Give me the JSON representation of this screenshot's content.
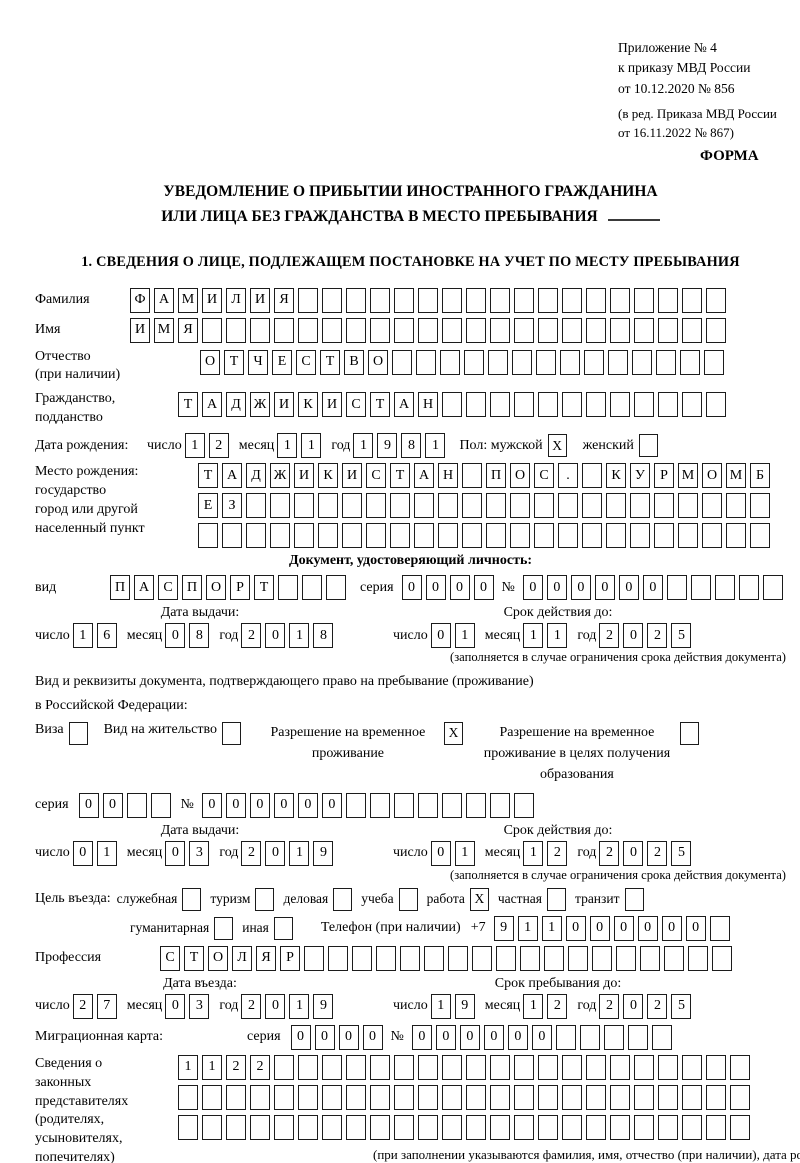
{
  "marks": {
    "x": "X"
  },
  "header": {
    "appendix_lines": [
      "Приложение № 4",
      "к приказу МВД России",
      "от 10.12.2020 № 856"
    ],
    "edition_lines": [
      "(в ред. Приказа МВД России",
      "от 16.11.2022 № 867)"
    ],
    "forma": "ФОРМА"
  },
  "title": {
    "line1": "УВЕДОМЛЕНИЕ О ПРИБЫТИИ ИНОСТРАННОГО ГРАЖДАНИНА",
    "line2": "ИЛИ ЛИЦА БЕЗ ГРАЖДАНСТВА В МЕСТО ПРЕБЫВАНИЯ"
  },
  "section1_title": "1. СВЕДЕНИЯ О ЛИЦЕ, ПОДЛЕЖАЩЕМ ПОСТАНОВКЕ НА УЧЕТ ПО МЕСТУ ПРЕБЫВАНИЯ",
  "labels": {
    "surname": "Фамилия",
    "name": "Имя",
    "patronymic_l1": "Отчество",
    "patronymic_l2": "(при наличии)",
    "citizenship_l1": "Гражданство,",
    "citizenship_l2": "подданство",
    "birth_date": "Дата рождения:",
    "day": "число",
    "month": "месяц",
    "year": "год",
    "sex": "Пол:",
    "male": "мужской",
    "female": "женский",
    "birth_place_lines": [
      "Место рождения:",
      "государство",
      "город или другой",
      "населенный пункт"
    ],
    "id_doc_header": "Документ, удостоверяющий личность:",
    "kind": "вид",
    "series": "серия",
    "number": "№",
    "issue_date": "Дата выдачи:",
    "valid_until": "Срок действия до:",
    "valid_note": "(заполняется в случае ограничения срока действия документа)",
    "residence_line1": "Вид и реквизиты документа, подтверждающего право на пребывание (проживание)",
    "residence_line2": "в Российской Федерации:",
    "visa": "Виза",
    "residence_permit": "Вид на жительство",
    "temp_residence": "Разрешение на временное проживание",
    "temp_residence_edu": "Разрешение на временное проживание в целях получения образования",
    "purpose": "Цель въезда:",
    "phone_label": "Телефон (при наличии)",
    "phone_prefix": "+7",
    "profession": "Профессия",
    "entry_date": "Дата въезда:",
    "stay_until": "Срок пребывания до:",
    "migration_card": "Миграционная карта:",
    "legal_rep_lines": [
      "Сведения о",
      "законных",
      "представителях",
      "(родителях,",
      "усыновителях,",
      "попечителях)"
    ],
    "legal_rep_note": "(при заполнении указываются фамилия, имя, отчество (при наличии), дата рождения)"
  },
  "cells": {
    "surname": {
      "value": "ФАМИЛИЯ",
      "len": 25
    },
    "name": {
      "value": "ИМЯ",
      "len": 25
    },
    "patronymic": {
      "value": "ОТЧЕСТВО",
      "len": 22
    },
    "citizenship": {
      "value": "ТАДЖИКИСТАН",
      "len": 23
    },
    "birth_place1": {
      "value": "ТАДЖИКИСТАН ПОС. КУРМОМБ",
      "len": 24
    },
    "birth_place2": {
      "value": "ЕЗ",
      "len": 24
    },
    "birth_place3": {
      "value": "",
      "len": 24
    },
    "doc_kind": {
      "value": "ПАСПОРТ",
      "len": 10
    },
    "doc_series": {
      "value": "0000",
      "len": 4
    },
    "doc_number": {
      "value": "000000",
      "len": 11
    },
    "res_series": {
      "value": "00",
      "len": 4
    },
    "res_number": {
      "value": "000000",
      "len": 14
    },
    "phone": {
      "value": "911000000",
      "len": 10
    },
    "profession": {
      "value": "СТОЛЯР",
      "len": 24
    },
    "mig_series": {
      "value": "0000",
      "len": 4
    },
    "mig_number": {
      "value": "000000",
      "len": 11
    },
    "rep1": {
      "value": "1122",
      "len": 24
    },
    "rep2": {
      "value": "",
      "len": 24
    },
    "rep3": {
      "value": "",
      "len": 24
    }
  },
  "dates": {
    "birth": {
      "d": "12",
      "m": "11",
      "y": "1981"
    },
    "doc_issue": {
      "d": "16",
      "m": "08",
      "y": "2018"
    },
    "doc_valid": {
      "d": "01",
      "m": "11",
      "y": "2025"
    },
    "res_issue": {
      "d": "01",
      "m": "03",
      "y": "2019"
    },
    "res_valid": {
      "d": "01",
      "m": "12",
      "y": "2025"
    },
    "entry": {
      "d": "27",
      "m": "03",
      "y": "2019"
    },
    "stay": {
      "d": "19",
      "m": "12",
      "y": "2025"
    }
  },
  "checks": {
    "male": true,
    "female": false,
    "visa": false,
    "residence_permit": false,
    "temp_residence": true,
    "temp_residence_edu": false
  },
  "purpose_options": [
    {
      "label": "служебная",
      "checked": false
    },
    {
      "label": "туризм",
      "checked": false
    },
    {
      "label": "деловая",
      "checked": false
    },
    {
      "label": "учеба",
      "checked": false
    },
    {
      "label": "работа",
      "checked": true
    },
    {
      "label": "частная",
      "checked": false
    },
    {
      "label": "транзит",
      "checked": false
    }
  ],
  "purpose_options2": [
    {
      "label": "гуманитарная",
      "checked": false
    },
    {
      "label": "иная",
      "checked": false
    }
  ]
}
